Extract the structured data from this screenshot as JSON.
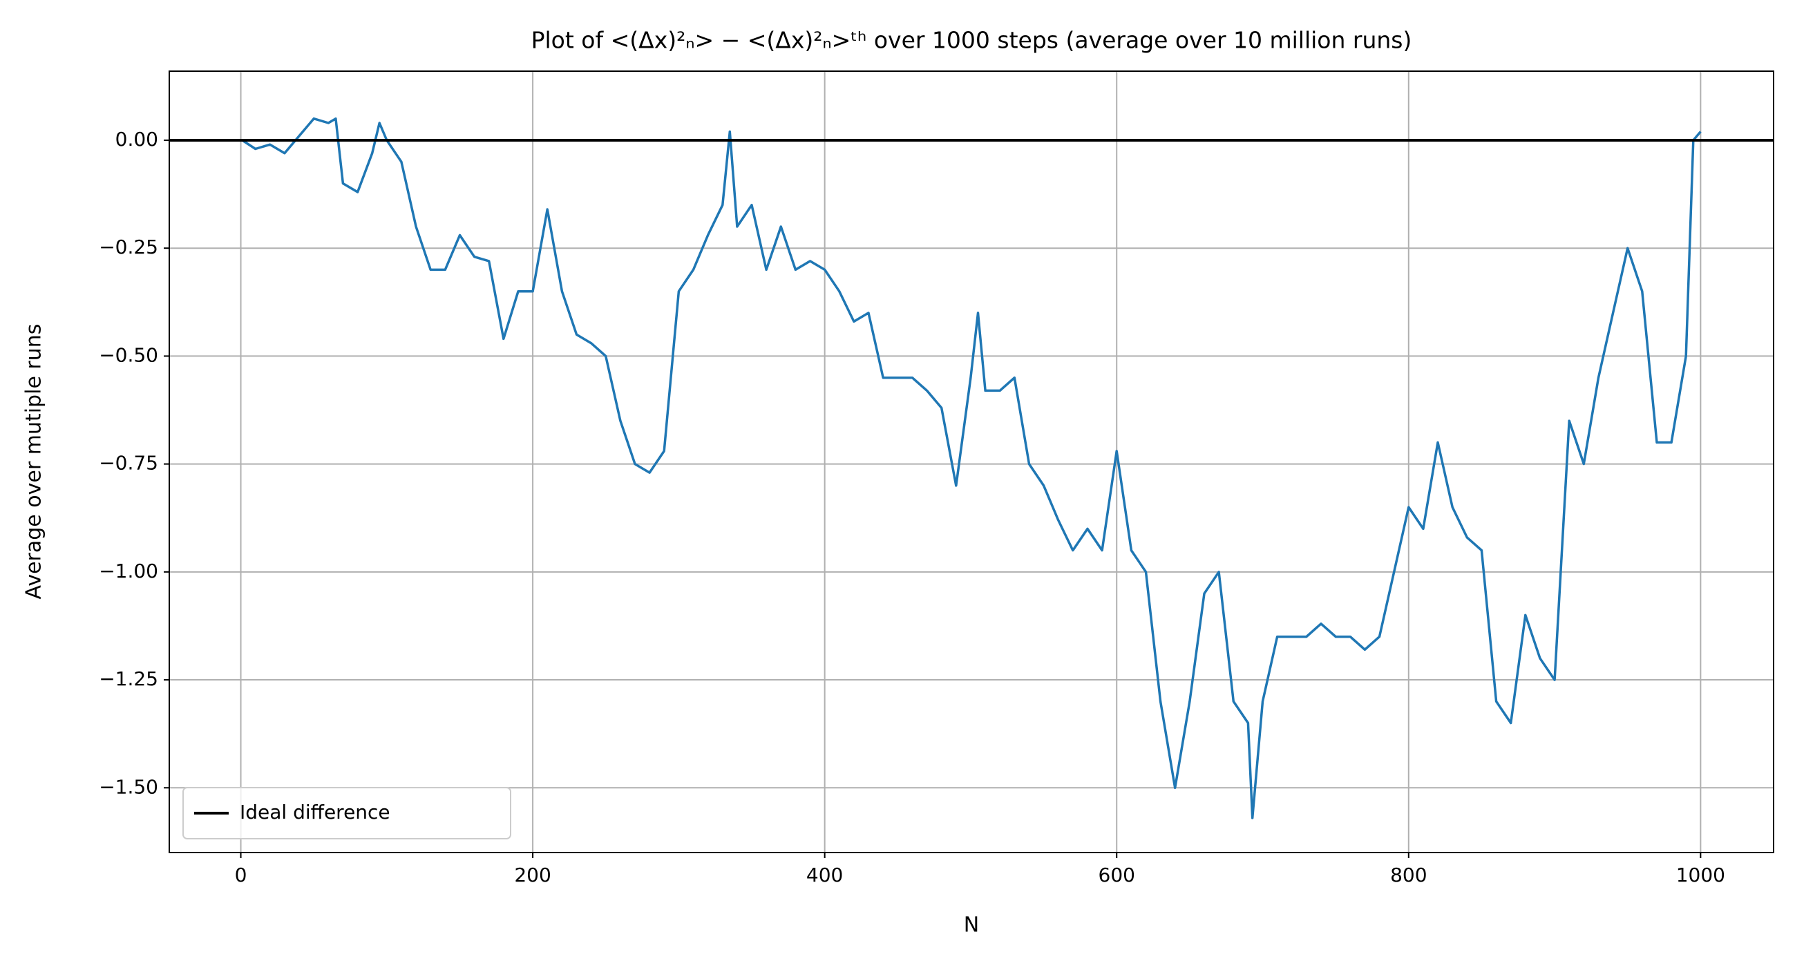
{
  "chart_data": {
    "type": "line",
    "title": "Plot of <(Δx)²ₙ> − <(Δx)²ₙ>ᵗʰ over 1000 steps (average over 10 million runs)",
    "x_label": "N",
    "y_label": "Average over mutiple runs",
    "x": [
      1,
      10,
      20,
      30,
      40,
      50,
      60,
      65,
      70,
      80,
      90,
      95,
      100,
      110,
      120,
      130,
      140,
      150,
      160,
      170,
      180,
      190,
      200,
      210,
      220,
      230,
      240,
      250,
      260,
      270,
      280,
      290,
      300,
      310,
      320,
      330,
      335,
      340,
      350,
      360,
      370,
      380,
      390,
      400,
      410,
      420,
      430,
      440,
      450,
      460,
      470,
      480,
      490,
      500,
      505,
      510,
      520,
      530,
      540,
      550,
      560,
      570,
      580,
      590,
      600,
      610,
      620,
      630,
      640,
      650,
      660,
      670,
      680,
      690,
      693,
      700,
      710,
      720,
      730,
      740,
      750,
      760,
      770,
      780,
      790,
      800,
      810,
      820,
      830,
      840,
      850,
      860,
      870,
      880,
      890,
      900,
      910,
      920,
      930,
      940,
      950,
      960,
      970,
      980,
      990,
      995,
      1000
    ],
    "series": [
      {
        "color": "#1f77b4",
        "values": [
          0.0,
          -0.02,
          -0.01,
          -0.03,
          0.01,
          0.05,
          0.04,
          0.05,
          -0.1,
          -0.12,
          -0.03,
          0.04,
          0.0,
          -0.05,
          -0.2,
          -0.3,
          -0.3,
          -0.22,
          -0.27,
          -0.28,
          -0.46,
          -0.35,
          -0.35,
          -0.16,
          -0.35,
          -0.45,
          -0.47,
          -0.5,
          -0.65,
          -0.75,
          -0.77,
          -0.72,
          -0.35,
          -0.3,
          -0.22,
          -0.15,
          0.02,
          -0.2,
          -0.15,
          -0.3,
          -0.2,
          -0.3,
          -0.28,
          -0.3,
          -0.35,
          -0.42,
          -0.4,
          -0.55,
          -0.55,
          -0.55,
          -0.58,
          -0.62,
          -0.8,
          -0.55,
          -0.4,
          -0.58,
          -0.58,
          -0.55,
          -0.75,
          -0.8,
          -0.88,
          -0.95,
          -0.9,
          -0.95,
          -0.72,
          -0.95,
          -1.0,
          -1.3,
          -1.5,
          -1.3,
          -1.05,
          -1.0,
          -1.3,
          -1.35,
          -1.57,
          -1.3,
          -1.15,
          -1.15,
          -1.15,
          -1.12,
          -1.15,
          -1.15,
          -1.18,
          -1.15,
          -1.0,
          -0.85,
          -0.9,
          -0.7,
          -0.85,
          -0.92,
          -0.95,
          -1.3,
          -1.35,
          -1.1,
          -1.2,
          -1.25,
          -0.65,
          -0.75,
          -0.55,
          -0.4,
          -0.25,
          -0.35,
          -0.7,
          -0.7,
          -0.5,
          0.0,
          0.02
        ]
      }
    ],
    "reference_lines": [
      {
        "name": "Ideal difference",
        "value": 0,
        "color": "#000000"
      }
    ],
    "xlim": [
      -49,
      1050
    ],
    "ylim": [
      -1.65,
      0.16
    ],
    "xticks": [
      0,
      200,
      400,
      600,
      800,
      1000
    ],
    "yticks": [
      {
        "value": 0,
        "label": "0.00"
      },
      {
        "value": -0.25,
        "label": "−0.25"
      },
      {
        "value": -0.5,
        "label": "−0.50"
      },
      {
        "value": -0.75,
        "label": "−0.75"
      },
      {
        "value": -1,
        "label": "−1.00"
      },
      {
        "value": -1.25,
        "label": "−1.25"
      },
      {
        "value": -1.5,
        "label": "−1.50"
      }
    ],
    "grid": true,
    "legend_position": "lower left"
  }
}
